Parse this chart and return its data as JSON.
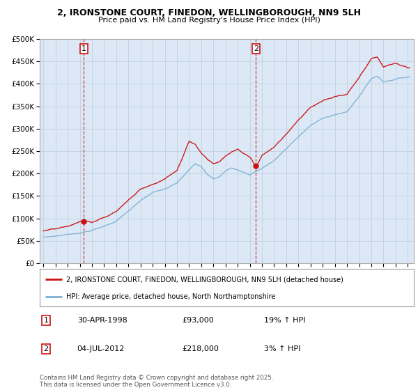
{
  "title1": "2, IRONSTONE COURT, FINEDON, WELLINGBOROUGH, NN9 5LH",
  "title2": "Price paid vs. HM Land Registry's House Price Index (HPI)",
  "legend_line1": "2, IRONSTONE COURT, FINEDON, WELLINGBOROUGH, NN9 5LH (detached house)",
  "legend_line2": "HPI: Average price, detached house, North Northamptonshire",
  "annotation1_label": "1",
  "annotation1_date": "30-APR-1998",
  "annotation1_price": "£93,000",
  "annotation1_hpi": "19% ↑ HPI",
  "annotation2_label": "2",
  "annotation2_date": "04-JUL-2012",
  "annotation2_price": "£218,000",
  "annotation2_hpi": "3% ↑ HPI",
  "footer": "Contains HM Land Registry data © Crown copyright and database right 2025.\nThis data is licensed under the Open Government Licence v3.0.",
  "sale1_year": 1998.33,
  "sale1_value": 93000,
  "sale2_year": 2012.5,
  "sale2_value": 218000,
  "hpi_color": "#7bafd4",
  "price_color": "#cc1111",
  "sale_marker_color": "#cc1111",
  "background_color": "#ffffff",
  "chart_bg_color": "#dce8f5",
  "grid_color": "#c0cfe0",
  "ylim": [
    0,
    500000
  ],
  "yticks": [
    0,
    50000,
    100000,
    150000,
    200000,
    250000,
    300000,
    350000,
    400000,
    450000,
    500000
  ],
  "xlim_start": 1994.7,
  "xlim_end": 2025.5,
  "hpi_points": [
    [
      1995.0,
      58000
    ],
    [
      1996.0,
      61000
    ],
    [
      1997.0,
      65000
    ],
    [
      1998.0,
      69000
    ],
    [
      1999.0,
      75000
    ],
    [
      2000.0,
      84000
    ],
    [
      2001.0,
      96000
    ],
    [
      2002.0,
      118000
    ],
    [
      2003.0,
      140000
    ],
    [
      2004.0,
      158000
    ],
    [
      2005.0,
      165000
    ],
    [
      2006.0,
      178000
    ],
    [
      2007.0,
      210000
    ],
    [
      2007.5,
      225000
    ],
    [
      2008.0,
      218000
    ],
    [
      2008.5,
      200000
    ],
    [
      2009.0,
      190000
    ],
    [
      2009.5,
      195000
    ],
    [
      2010.0,
      208000
    ],
    [
      2010.5,
      215000
    ],
    [
      2011.0,
      210000
    ],
    [
      2011.5,
      205000
    ],
    [
      2012.0,
      200000
    ],
    [
      2012.5,
      208000
    ],
    [
      2013.0,
      215000
    ],
    [
      2014.0,
      232000
    ],
    [
      2015.0,
      258000
    ],
    [
      2016.0,
      285000
    ],
    [
      2017.0,
      310000
    ],
    [
      2018.0,
      325000
    ],
    [
      2019.0,
      335000
    ],
    [
      2020.0,
      340000
    ],
    [
      2021.0,
      375000
    ],
    [
      2022.0,
      415000
    ],
    [
      2022.5,
      420000
    ],
    [
      2023.0,
      408000
    ],
    [
      2024.0,
      415000
    ],
    [
      2025.0,
      420000
    ]
  ],
  "price_points": [
    [
      1995.0,
      72000
    ],
    [
      1996.0,
      75000
    ],
    [
      1997.0,
      79000
    ],
    [
      1998.33,
      93000
    ],
    [
      1999.0,
      88000
    ],
    [
      2000.0,
      98000
    ],
    [
      2001.0,
      112000
    ],
    [
      2002.0,
      138000
    ],
    [
      2003.0,
      162000
    ],
    [
      2004.0,
      175000
    ],
    [
      2005.0,
      188000
    ],
    [
      2006.0,
      208000
    ],
    [
      2006.5,
      240000
    ],
    [
      2007.0,
      275000
    ],
    [
      2007.5,
      268000
    ],
    [
      2008.0,
      248000
    ],
    [
      2008.5,
      235000
    ],
    [
      2009.0,
      225000
    ],
    [
      2009.5,
      230000
    ],
    [
      2010.0,
      242000
    ],
    [
      2010.5,
      252000
    ],
    [
      2011.0,
      258000
    ],
    [
      2011.5,
      248000
    ],
    [
      2012.0,
      240000
    ],
    [
      2012.5,
      218000
    ],
    [
      2013.0,
      245000
    ],
    [
      2014.0,
      265000
    ],
    [
      2015.0,
      295000
    ],
    [
      2016.0,
      328000
    ],
    [
      2017.0,
      355000
    ],
    [
      2018.0,
      370000
    ],
    [
      2019.0,
      378000
    ],
    [
      2020.0,
      382000
    ],
    [
      2021.0,
      418000
    ],
    [
      2022.0,
      458000
    ],
    [
      2022.5,
      462000
    ],
    [
      2023.0,
      440000
    ],
    [
      2024.0,
      448000
    ],
    [
      2025.0,
      438000
    ]
  ]
}
